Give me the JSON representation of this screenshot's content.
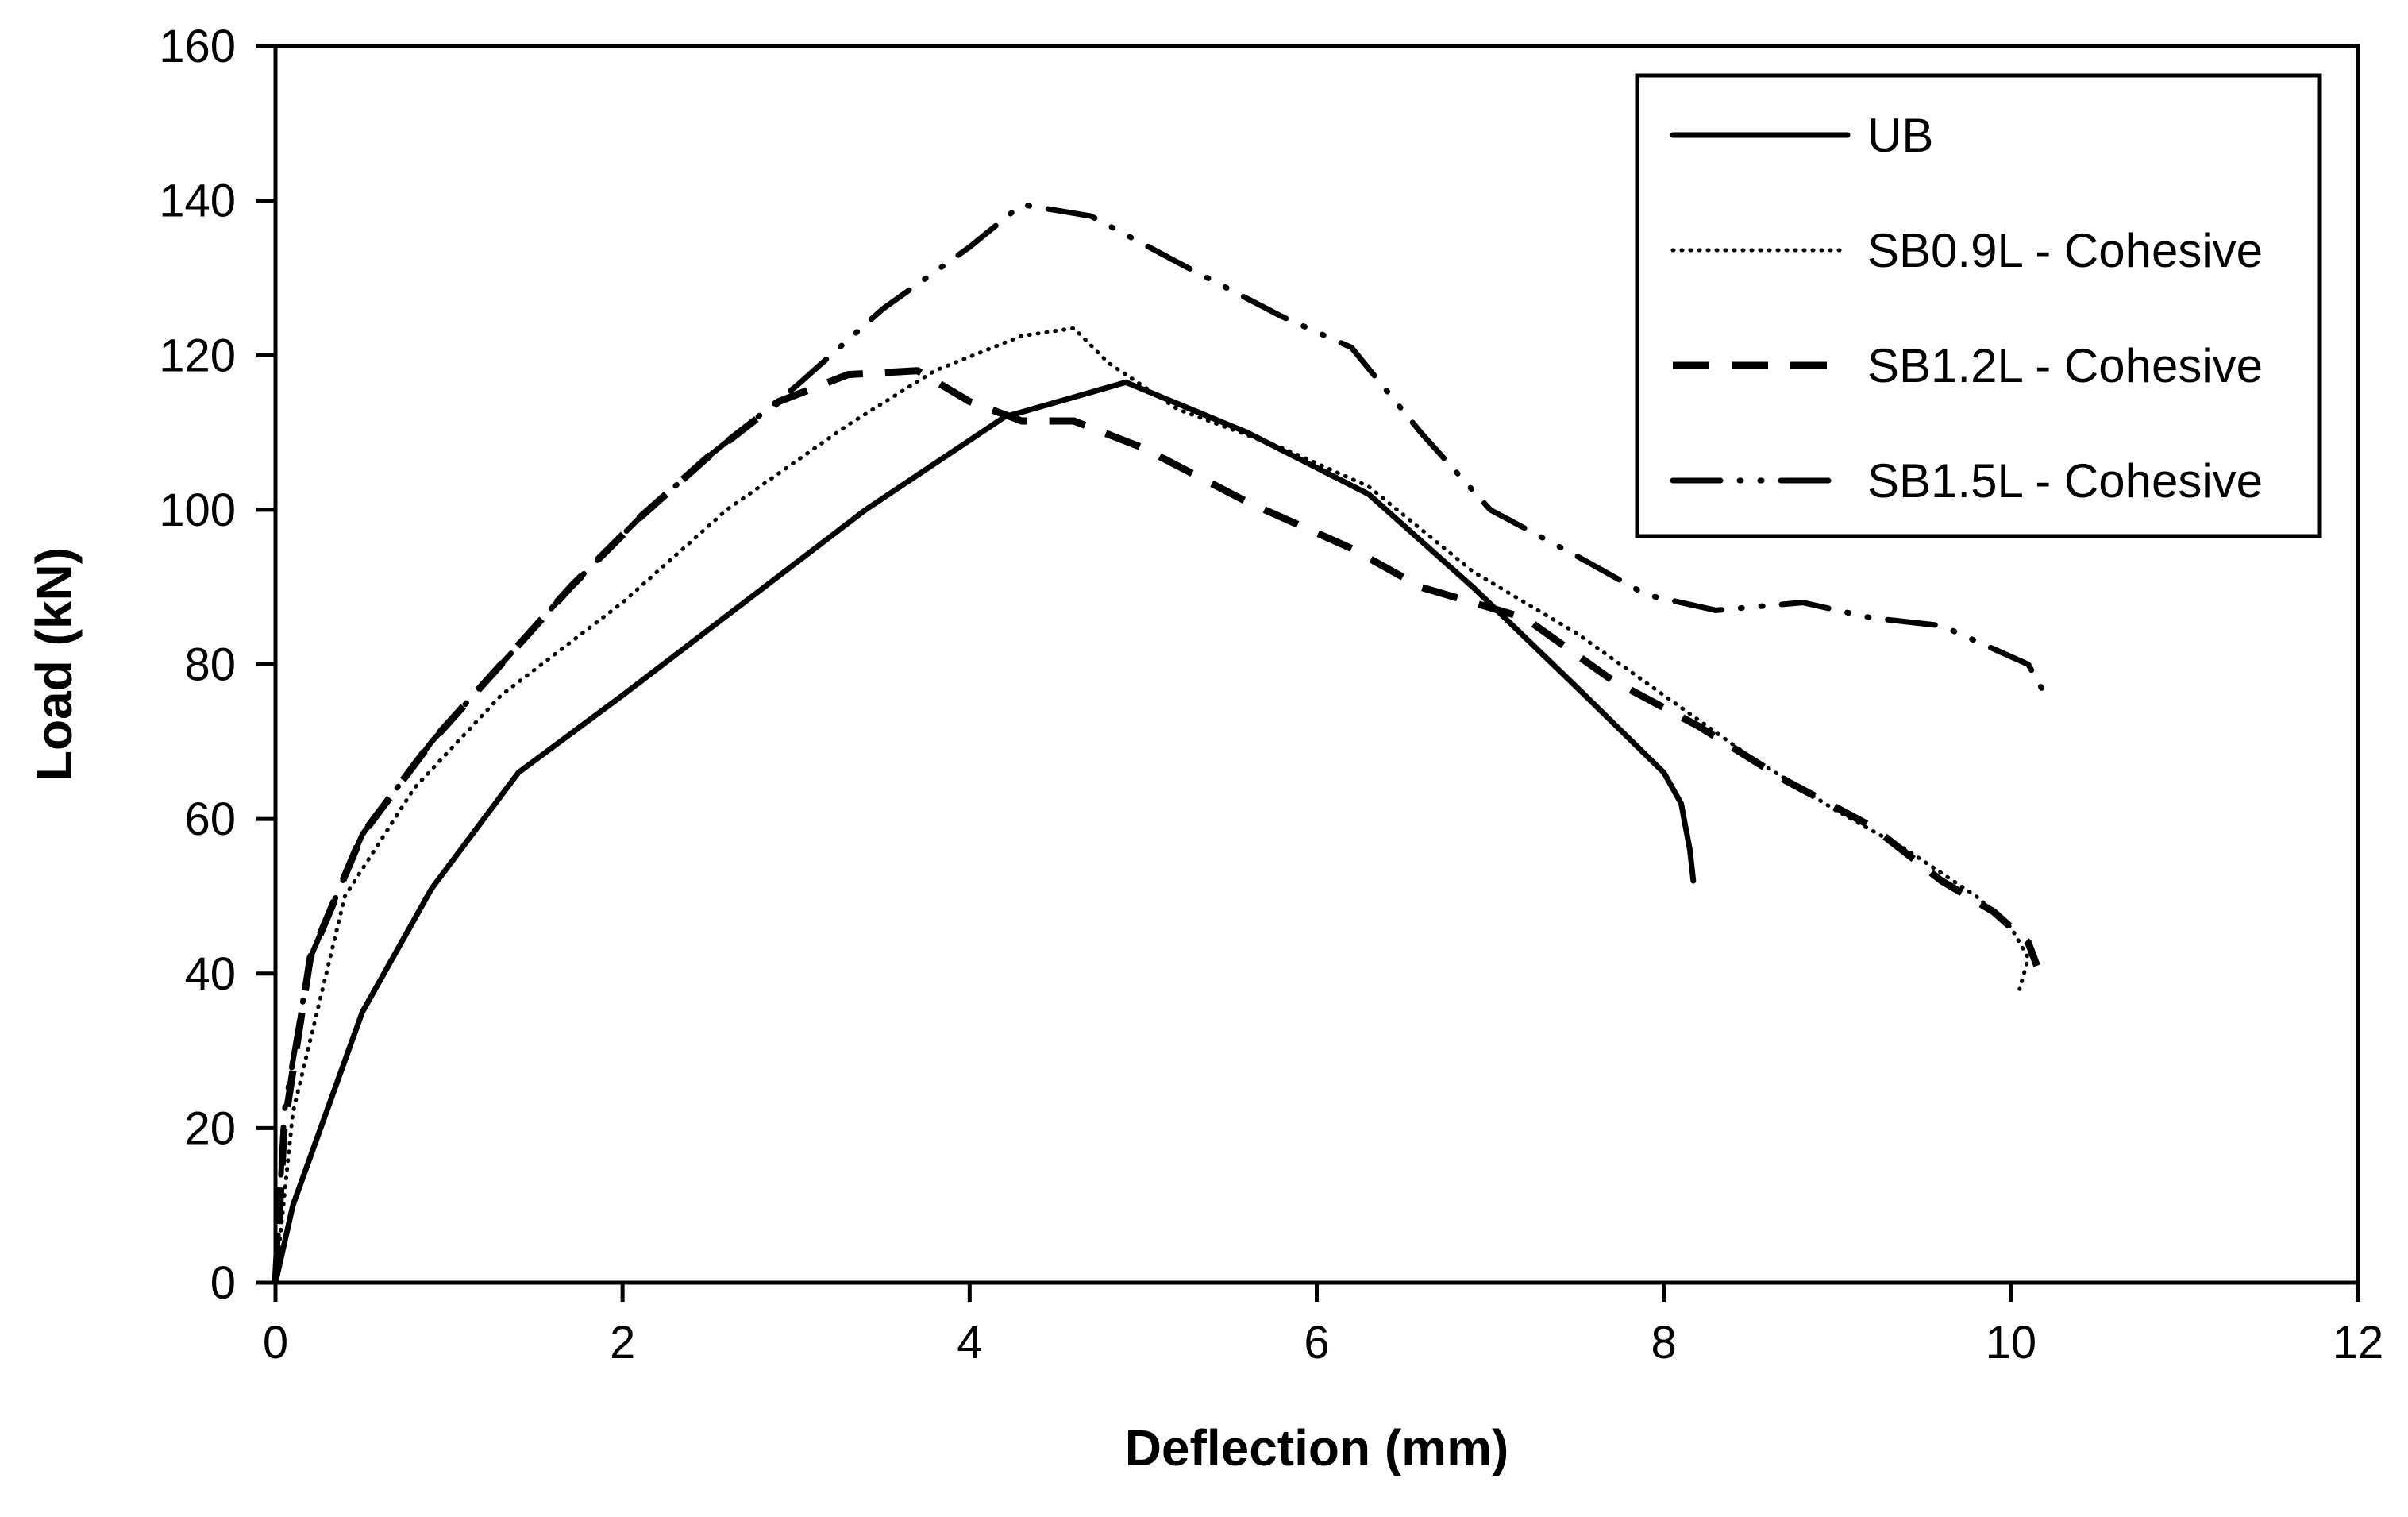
{
  "chart_data": {
    "type": "line",
    "title": "",
    "xlabel": "Deflection (mm)",
    "ylabel": "Load (kN)",
    "xlim": [
      0,
      12
    ],
    "ylim": [
      0,
      160
    ],
    "xticks": [
      0,
      2,
      4,
      6,
      8,
      10,
      12
    ],
    "yticks": [
      0,
      20,
      40,
      60,
      80,
      100,
      120,
      140,
      160
    ],
    "grid": false,
    "legend_position": "top-right",
    "series": [
      {
        "name": "UB",
        "style": "solid",
        "color": "#000000",
        "points": [
          [
            0,
            0
          ],
          [
            0.1,
            10
          ],
          [
            0.5,
            35
          ],
          [
            0.9,
            51
          ],
          [
            1.4,
            66
          ],
          [
            2.0,
            76
          ],
          [
            2.7,
            88
          ],
          [
            3.4,
            100
          ],
          [
            4.2,
            112
          ],
          [
            4.9,
            116.5
          ],
          [
            5.6,
            110
          ],
          [
            6.3,
            102
          ],
          [
            6.9,
            90
          ],
          [
            7.5,
            77
          ],
          [
            8.0,
            66
          ],
          [
            8.1,
            62
          ],
          [
            8.15,
            56
          ],
          [
            8.17,
            52
          ]
        ]
      },
      {
        "name": "SB0.9L - Cohesive",
        "style": "dotted",
        "color": "#000000",
        "points": [
          [
            0,
            0
          ],
          [
            0.1,
            22
          ],
          [
            0.4,
            50
          ],
          [
            0.8,
            64
          ],
          [
            1.3,
            76
          ],
          [
            2.0,
            88
          ],
          [
            2.6,
            100
          ],
          [
            3.3,
            111
          ],
          [
            3.8,
            118
          ],
          [
            4.3,
            122.5
          ],
          [
            4.6,
            123.5
          ],
          [
            4.8,
            119
          ],
          [
            5.2,
            113
          ],
          [
            5.8,
            108
          ],
          [
            6.3,
            103
          ],
          [
            6.9,
            92
          ],
          [
            7.5,
            84
          ],
          [
            8.0,
            76
          ],
          [
            8.5,
            68
          ],
          [
            9.0,
            61
          ],
          [
            9.4,
            56
          ],
          [
            9.8,
            50
          ],
          [
            10.0,
            46
          ],
          [
            10.1,
            42
          ],
          [
            10.05,
            38
          ]
        ]
      },
      {
        "name": "SB1.2L - Cohesive",
        "style": "dashed",
        "color": "#000000",
        "points": [
          [
            0,
            0
          ],
          [
            0.05,
            20
          ],
          [
            0.2,
            42
          ],
          [
            0.5,
            58
          ],
          [
            0.9,
            70
          ],
          [
            1.3,
            80
          ],
          [
            1.7,
            90
          ],
          [
            2.1,
            99
          ],
          [
            2.5,
            107
          ],
          [
            2.9,
            114
          ],
          [
            3.3,
            117.5
          ],
          [
            3.7,
            118
          ],
          [
            4.0,
            114
          ],
          [
            4.3,
            111.5
          ],
          [
            4.6,
            111.5
          ],
          [
            5.0,
            108
          ],
          [
            5.6,
            101
          ],
          [
            6.2,
            95
          ],
          [
            6.6,
            90
          ],
          [
            7.2,
            86
          ],
          [
            7.7,
            78
          ],
          [
            8.2,
            72
          ],
          [
            8.7,
            65
          ],
          [
            9.2,
            59
          ],
          [
            9.6,
            52
          ],
          [
            9.9,
            48
          ],
          [
            10.1,
            44
          ],
          [
            10.15,
            41
          ]
        ]
      },
      {
        "name": "SB1.5L - Cohesive",
        "style": "dashdot",
        "color": "#000000",
        "points": [
          [
            0,
            0
          ],
          [
            0.05,
            22
          ],
          [
            0.2,
            42
          ],
          [
            0.5,
            58
          ],
          [
            0.9,
            70
          ],
          [
            1.3,
            80
          ],
          [
            1.7,
            90
          ],
          [
            2.1,
            99
          ],
          [
            2.5,
            107
          ],
          [
            3.0,
            116
          ],
          [
            3.5,
            126
          ],
          [
            4.0,
            134
          ],
          [
            4.3,
            139.5
          ],
          [
            4.7,
            138
          ],
          [
            5.2,
            132
          ],
          [
            5.8,
            125
          ],
          [
            6.2,
            121
          ],
          [
            6.6,
            110
          ],
          [
            7.0,
            100
          ],
          [
            7.5,
            94
          ],
          [
            7.9,
            89
          ],
          [
            8.3,
            87
          ],
          [
            8.8,
            88
          ],
          [
            9.2,
            86
          ],
          [
            9.6,
            85
          ],
          [
            9.9,
            82
          ],
          [
            10.1,
            80
          ],
          [
            10.2,
            76
          ]
        ]
      }
    ]
  }
}
